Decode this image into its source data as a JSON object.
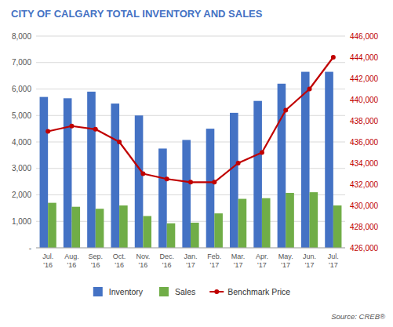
{
  "chart_data": {
    "type": "bar",
    "title": "CITY OF CALGARY TOTAL INVENTORY AND SALES",
    "categories": [
      "Jul.\n'16",
      "Aug.\n'16",
      "Sep.\n'16",
      "Oct.\n'16",
      "Nov.\n'16",
      "Dec.\n'16",
      "Jan.\n'17",
      "Feb.\n'17",
      "Mar.\n'17",
      "Apr.\n'17",
      "May.\n'17",
      "Jun.\n'17",
      "Jul.\n'17"
    ],
    "series": [
      {
        "name": "Inventory",
        "color": "#4472C4",
        "values": [
          5700,
          5650,
          5900,
          5450,
          5000,
          3750,
          4075,
          4500,
          5100,
          5550,
          6200,
          6650,
          6650
        ]
      },
      {
        "name": "Sales",
        "color": "#70AD47",
        "values": [
          1700,
          1550,
          1475,
          1600,
          1200,
          925,
          950,
          1300,
          1850,
          1875,
          2075,
          2100,
          1600
        ]
      },
      {
        "name": "Benchmark Price",
        "type": "line",
        "axis": "y2",
        "color": "#C00000",
        "marker": "circle",
        "values": [
          437000,
          437500,
          437200,
          436000,
          433000,
          432500,
          432200,
          432200,
          434000,
          435000,
          439000,
          441000,
          444000
        ]
      }
    ],
    "ylim": [
      0,
      8000
    ],
    "yticks": [
      {
        "value": 0,
        "label": "-"
      },
      {
        "value": 1000,
        "label": "1,000"
      },
      {
        "value": 2000,
        "label": "2,000"
      },
      {
        "value": 3000,
        "label": "3,000"
      },
      {
        "value": 4000,
        "label": "4,000"
      },
      {
        "value": 5000,
        "label": "5,000"
      },
      {
        "value": 6000,
        "label": "6,000"
      },
      {
        "value": 7000,
        "label": "7,000"
      },
      {
        "value": 8000,
        "label": "8,000"
      }
    ],
    "y2lim": [
      426000,
      446000
    ],
    "y2ticks": [
      {
        "value": 426000,
        "label": "426,000"
      },
      {
        "value": 428000,
        "label": "428,000"
      },
      {
        "value": 430000,
        "label": "430,000"
      },
      {
        "value": 432000,
        "label": "432,000"
      },
      {
        "value": 434000,
        "label": "434,000"
      },
      {
        "value": 436000,
        "label": "436,000"
      },
      {
        "value": 438000,
        "label": "438,000"
      },
      {
        "value": 440000,
        "label": "440,000"
      },
      {
        "value": 442000,
        "label": "442,000"
      },
      {
        "value": 444000,
        "label": "444,000"
      },
      {
        "value": 446000,
        "label": "446,000"
      }
    ],
    "grid": true,
    "legend": "bottom",
    "title_color": "#4472C4",
    "annotations": [
      "Source: CREB®"
    ]
  }
}
